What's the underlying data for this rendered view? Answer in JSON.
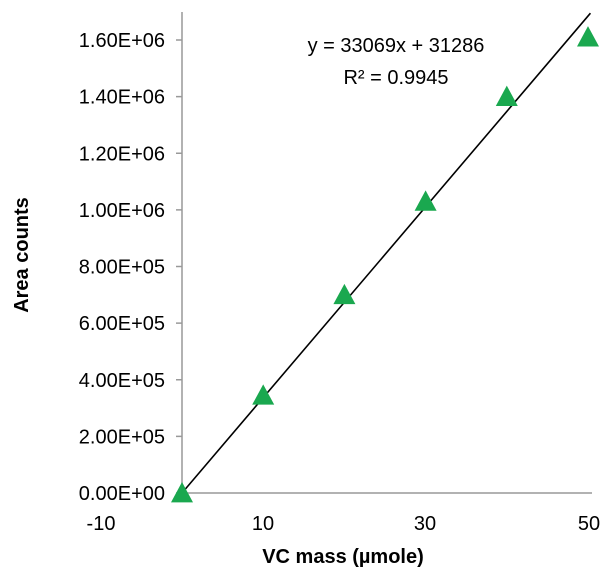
{
  "chart_data": {
    "type": "scatter",
    "title": "",
    "xlabel": "VC mass (µmole)",
    "ylabel": "Area counts",
    "xlim": [
      -10,
      50
    ],
    "ylim": [
      0,
      1700000
    ],
    "x_tick_values": [
      -10,
      10,
      30,
      50
    ],
    "x_tick_labels": [
      "-10",
      "10",
      "30",
      "50"
    ],
    "y_tick_values": [
      0,
      200000,
      400000,
      600000,
      800000,
      1000000,
      1200000,
      1400000,
      1600000
    ],
    "y_tick_labels": [
      "0.00E+00",
      "2.00E+05",
      "4.00E+05",
      "6.00E+05",
      "8.00E+05",
      "1.00E+06",
      "1.20E+06",
      "1.40E+06",
      "1.60E+06"
    ],
    "grid": false,
    "series": [
      {
        "marker": "triangle",
        "color": "#1aa84f",
        "points": [
          {
            "x": 0,
            "y": 0
          },
          {
            "x": 10,
            "y": 345000
          },
          {
            "x": 20,
            "y": 700000
          },
          {
            "x": 30,
            "y": 1030000
          },
          {
            "x": 40,
            "y": 1400000
          },
          {
            "x": 50,
            "y": 1610000
          }
        ]
      }
    ],
    "trendline": {
      "type": "linear",
      "slope": 33069,
      "intercept": 31286,
      "x_range": [
        0,
        50
      ],
      "color": "#000000",
      "equation": "y = 33069x + 31286",
      "r_squared": "R² = 0.9945"
    }
  }
}
